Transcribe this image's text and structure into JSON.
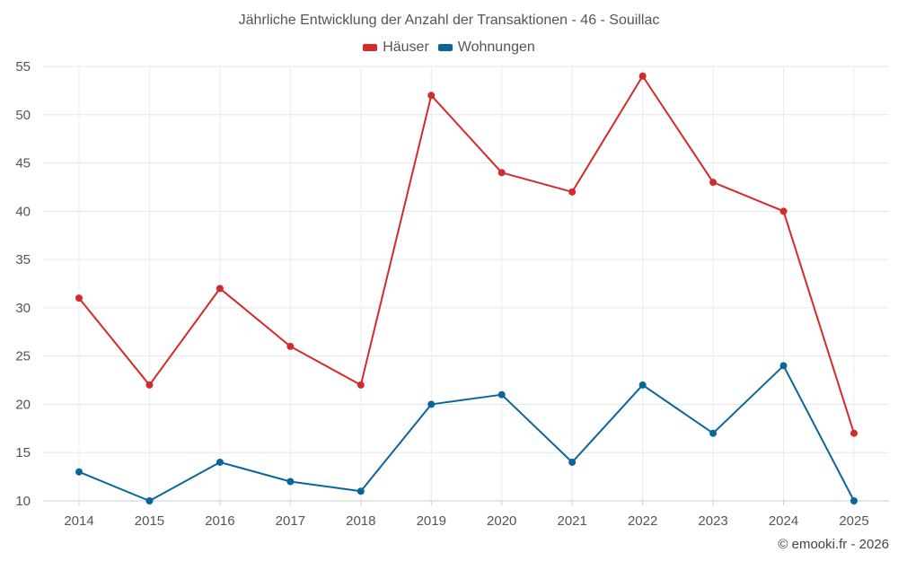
{
  "title": "Jährliche Entwicklung der Anzahl der Transaktionen - 46 - Souillac",
  "credit": "© emooki.fr - 2026",
  "chart_data": {
    "type": "line",
    "title": "Jährliche Entwicklung der Anzahl der Transaktionen - 46 - Souillac",
    "x": [
      "2014",
      "2015",
      "2016",
      "2017",
      "2018",
      "2019",
      "2020",
      "2021",
      "2022",
      "2023",
      "2024",
      "2025"
    ],
    "ylim": [
      10,
      55
    ],
    "yticks": [
      10,
      15,
      20,
      25,
      30,
      35,
      40,
      45,
      50,
      55
    ],
    "grid": true,
    "legend_position": "top-center",
    "series": [
      {
        "name": "Häuser",
        "color": "#d32b2b",
        "values": [
          31,
          22,
          32,
          26,
          22,
          52,
          44,
          42,
          54,
          43,
          40,
          17
        ]
      },
      {
        "name": "Wohnungen",
        "color": "#0a6699",
        "values": [
          13,
          10,
          14,
          12,
          11,
          20,
          21,
          14,
          22,
          17,
          24,
          10
        ]
      }
    ]
  }
}
